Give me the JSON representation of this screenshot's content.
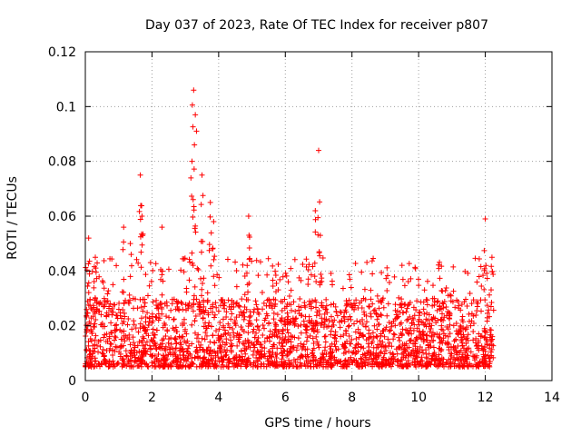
{
  "chart_data": {
    "type": "scatter",
    "title": "Day 037 of 2023, Rate Of TEC Index for receiver p807",
    "xlabel": "GPS time / hours",
    "ylabel": "ROTI / TECUs",
    "xlim": [
      0,
      14
    ],
    "ylim": [
      0,
      0.12
    ],
    "grid": true,
    "xticks": [
      0,
      2,
      4,
      6,
      8,
      10,
      12,
      14
    ],
    "xtick_labels": [
      "0",
      "2",
      "4",
      "6",
      "8",
      "10",
      "12",
      "14"
    ],
    "yticks": [
      0,
      0.02,
      0.04,
      0.06,
      0.08,
      0.1,
      0.12
    ],
    "ytick_labels": [
      "0",
      "0.02",
      "0.04",
      "0.06",
      "0.08",
      "0.1",
      "0.12"
    ],
    "marker": "+",
    "series": [
      {
        "name": "ROTI",
        "color": "#ff0000",
        "x_range": [
          0,
          12.25
        ],
        "typical_range": [
          0.005,
          0.03
        ],
        "notable_peaks": [
          {
            "x": 0.1,
            "y": 0.052
          },
          {
            "x": 0.3,
            "y": 0.045
          },
          {
            "x": 1.15,
            "y": 0.056
          },
          {
            "x": 1.35,
            "y": 0.05
          },
          {
            "x": 1.65,
            "y": 0.075
          },
          {
            "x": 1.7,
            "y": 0.06
          },
          {
            "x": 2.3,
            "y": 0.056
          },
          {
            "x": 3.2,
            "y": 0.08
          },
          {
            "x": 3.25,
            "y": 0.106
          },
          {
            "x": 3.3,
            "y": 0.097
          },
          {
            "x": 3.5,
            "y": 0.075
          },
          {
            "x": 3.75,
            "y": 0.065
          },
          {
            "x": 3.85,
            "y": 0.058
          },
          {
            "x": 4.9,
            "y": 0.06
          },
          {
            "x": 6.9,
            "y": 0.062
          },
          {
            "x": 7.0,
            "y": 0.084
          },
          {
            "x": 7.05,
            "y": 0.053
          },
          {
            "x": 12.0,
            "y": 0.059
          },
          {
            "x": 12.2,
            "y": 0.045
          }
        ]
      }
    ]
  }
}
